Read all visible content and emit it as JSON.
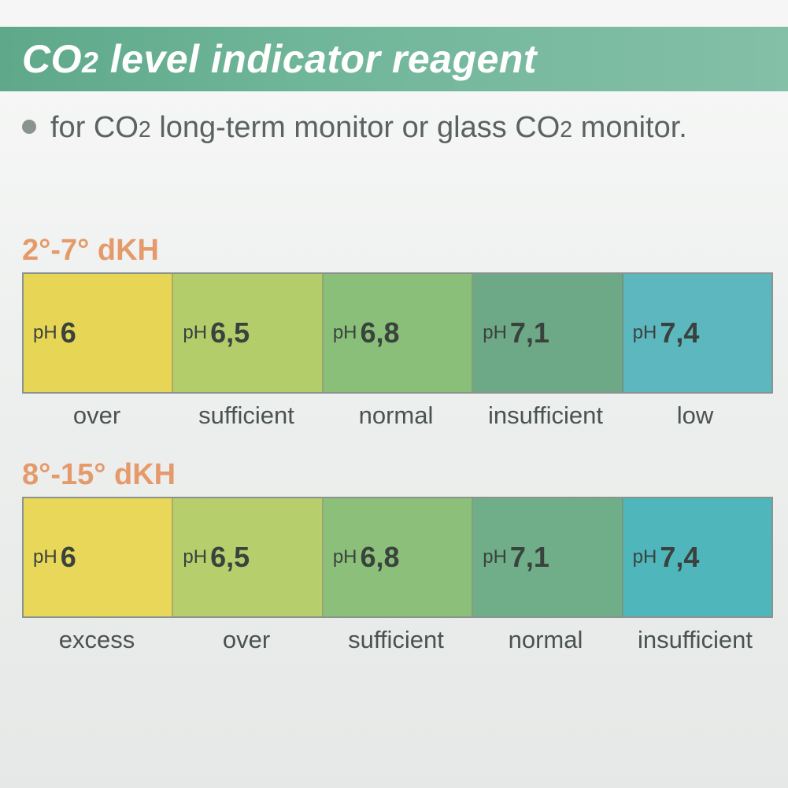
{
  "header": {
    "title_pre": "CO",
    "title_sub": "2",
    "title_post": " level indicator reagent",
    "title_bg": "#6bb095",
    "title_color": "#ffffff",
    "title_fontsize": 50
  },
  "subtitle": {
    "bullet_color": "#8b938f",
    "text_parts": [
      "for CO",
      "2",
      " long-term monitor or glass CO",
      "2",
      " monitor."
    ],
    "text_color": "#5b6360",
    "fontsize": 38
  },
  "background_color": "#eef0ef",
  "border_color": "#8b938f",
  "swatch_height": 150,
  "range_label_color": "#e59a6b",
  "label_color": "#4b534f",
  "chart1": {
    "range_label": "2°-7° dKH",
    "cells": [
      {
        "ph_prefix": "pH",
        "value": "6",
        "color": "#e7d556",
        "label": "over"
      },
      {
        "ph_prefix": "pH",
        "value": "6,5",
        "color": "#b3cd6a",
        "label": "sufficient"
      },
      {
        "ph_prefix": "pH",
        "value": "6,8",
        "color": "#8abf79",
        "label": "normal"
      },
      {
        "ph_prefix": "pH",
        "value": "7,1",
        "color": "#6da986",
        "label": "insufficient"
      },
      {
        "ph_prefix": "pH",
        "value": "7,4",
        "color": "#5cb7be",
        "label": "low"
      }
    ]
  },
  "chart2": {
    "range_label": "8°-15° dKH",
    "cells": [
      {
        "ph_prefix": "pH",
        "value": "6",
        "color": "#e8d758",
        "label": "excess"
      },
      {
        "ph_prefix": "pH",
        "value": "6,5",
        "color": "#b6ce6c",
        "label": "over"
      },
      {
        "ph_prefix": "pH",
        "value": "6,8",
        "color": "#8cc07a",
        "label": "sufficient"
      },
      {
        "ph_prefix": "pH",
        "value": "7,1",
        "color": "#6fae89",
        "label": "normal"
      },
      {
        "ph_prefix": "pH",
        "value": "7,4",
        "color": "#4fb6bb",
        "label": "insufficient"
      }
    ]
  }
}
